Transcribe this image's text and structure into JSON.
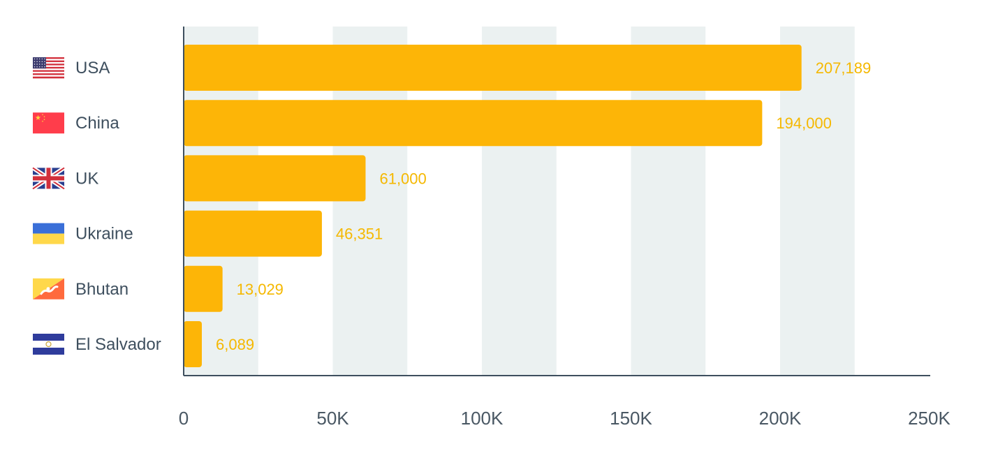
{
  "colors": {
    "bar": "#FDB507",
    "value_label": "#F5B800",
    "band": "#EBF1F1",
    "axis": "#3E4F5E",
    "text": "#3E4F5E"
  },
  "chart_data": {
    "type": "bar",
    "orientation": "horizontal",
    "title": "",
    "xlabel": "",
    "ylabel": "",
    "categories": [
      "USA",
      "China",
      "UK",
      "Ukraine",
      "Bhutan",
      "El Salvador"
    ],
    "flag_icons": [
      "usa-flag-icon",
      "china-flag-icon",
      "uk-flag-icon",
      "ukraine-flag-icon",
      "bhutan-flag-icon",
      "el-salvador-flag-icon"
    ],
    "values": [
      207189,
      194000,
      61000,
      46351,
      13029,
      6089
    ],
    "value_labels": [
      "207,189",
      "194,000",
      "61,000",
      "46,351",
      "13,029",
      "6,089"
    ],
    "xlim": [
      0,
      250000
    ],
    "x_ticks": [
      0,
      50000,
      100000,
      150000,
      200000,
      250000
    ],
    "x_tick_labels": [
      "0",
      "50K",
      "100K",
      "150K",
      "200K",
      "250K"
    ],
    "grid": "alternating vertical bands",
    "legend": "none"
  }
}
